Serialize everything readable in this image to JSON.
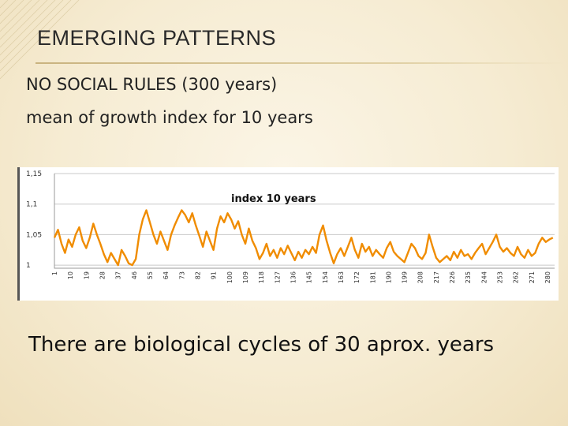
{
  "slide": {
    "title": "EMERGING PATTERNS",
    "subtitle_line1": "NO SOCIAL RULES (300 years)",
    "subtitle_line2": "mean of growth index for 10 years",
    "caption": "There are biological cycles of  30 aprox. years"
  },
  "colors": {
    "line": "#f08c00",
    "grid": "#c8c8c8"
  },
  "chart_data": {
    "type": "line",
    "title": "index 10 years",
    "xlabel": "",
    "ylabel": "",
    "ylim": [
      0.995,
      1.15
    ],
    "xlim": [
      1,
      284
    ],
    "yticks": [
      "1,15",
      "1,1",
      "1,05",
      "1"
    ],
    "ytick_values": [
      1.15,
      1.1,
      1.05,
      1.0
    ],
    "xticks": [
      1,
      10,
      19,
      28,
      37,
      46,
      55,
      64,
      73,
      82,
      91,
      100,
      109,
      118,
      127,
      136,
      145,
      154,
      163,
      172,
      181,
      190,
      199,
      208,
      217,
      226,
      235,
      244,
      253,
      262,
      271,
      280
    ],
    "grid": true,
    "legend": "none",
    "series": [
      {
        "x": [
          1,
          3,
          5,
          7,
          9,
          11,
          13,
          15,
          17,
          19,
          21,
          23,
          25,
          27,
          29,
          31,
          33,
          35,
          37,
          39,
          41,
          43,
          45,
          47,
          49,
          51,
          53,
          55,
          57,
          59,
          61,
          63,
          65,
          67,
          69,
          71,
          73,
          75,
          77,
          79,
          81,
          83,
          85,
          87,
          89,
          91,
          93,
          95,
          97,
          99,
          101,
          103,
          105,
          107,
          109,
          111,
          113,
          115,
          117,
          119,
          121,
          123,
          125,
          127,
          129,
          131,
          133,
          135,
          137,
          139,
          141,
          143,
          145,
          147,
          149,
          151,
          153,
          155,
          157,
          159,
          161,
          163,
          165,
          167,
          169,
          171,
          173,
          175,
          177,
          179,
          181,
          183,
          185,
          187,
          189,
          191,
          193,
          195,
          197,
          199,
          201,
          203,
          205,
          207,
          209,
          211,
          213,
          215,
          217,
          219,
          221,
          223,
          225,
          227,
          229,
          231,
          233,
          235,
          237,
          239,
          241,
          243,
          245,
          247,
          249,
          251,
          253,
          255,
          257,
          259,
          261,
          263,
          265,
          267,
          269,
          271,
          273,
          275,
          277,
          279,
          281,
          283
        ],
        "values": [
          1.045,
          1.058,
          1.035,
          1.02,
          1.042,
          1.03,
          1.05,
          1.062,
          1.04,
          1.028,
          1.045,
          1.068,
          1.05,
          1.035,
          1.018,
          1.005,
          1.02,
          1.01,
          1.0,
          1.025,
          1.015,
          1.003,
          1.0,
          1.01,
          1.05,
          1.075,
          1.09,
          1.07,
          1.05,
          1.035,
          1.055,
          1.04,
          1.025,
          1.05,
          1.065,
          1.078,
          1.09,
          1.082,
          1.07,
          1.085,
          1.065,
          1.048,
          1.03,
          1.055,
          1.04,
          1.025,
          1.06,
          1.08,
          1.07,
          1.085,
          1.075,
          1.06,
          1.072,
          1.05,
          1.035,
          1.06,
          1.04,
          1.028,
          1.01,
          1.02,
          1.035,
          1.015,
          1.025,
          1.012,
          1.028,
          1.018,
          1.032,
          1.02,
          1.008,
          1.022,
          1.012,
          1.025,
          1.018,
          1.03,
          1.02,
          1.05,
          1.065,
          1.04,
          1.02,
          1.003,
          1.018,
          1.028,
          1.015,
          1.03,
          1.045,
          1.025,
          1.012,
          1.035,
          1.022,
          1.03,
          1.015,
          1.025,
          1.018,
          1.012,
          1.028,
          1.038,
          1.022,
          1.015,
          1.01,
          1.005,
          1.02,
          1.035,
          1.028,
          1.015,
          1.01,
          1.02,
          1.05,
          1.03,
          1.012,
          1.005,
          1.01,
          1.015,
          1.008,
          1.022,
          1.012,
          1.025,
          1.015,
          1.018,
          1.01,
          1.02,
          1.028,
          1.035,
          1.018,
          1.028,
          1.038,
          1.05,
          1.03,
          1.022,
          1.028,
          1.02,
          1.015,
          1.03,
          1.018,
          1.012,
          1.025,
          1.015,
          1.02,
          1.035,
          1.045,
          1.038,
          1.042,
          1.045
        ]
      }
    ]
  }
}
